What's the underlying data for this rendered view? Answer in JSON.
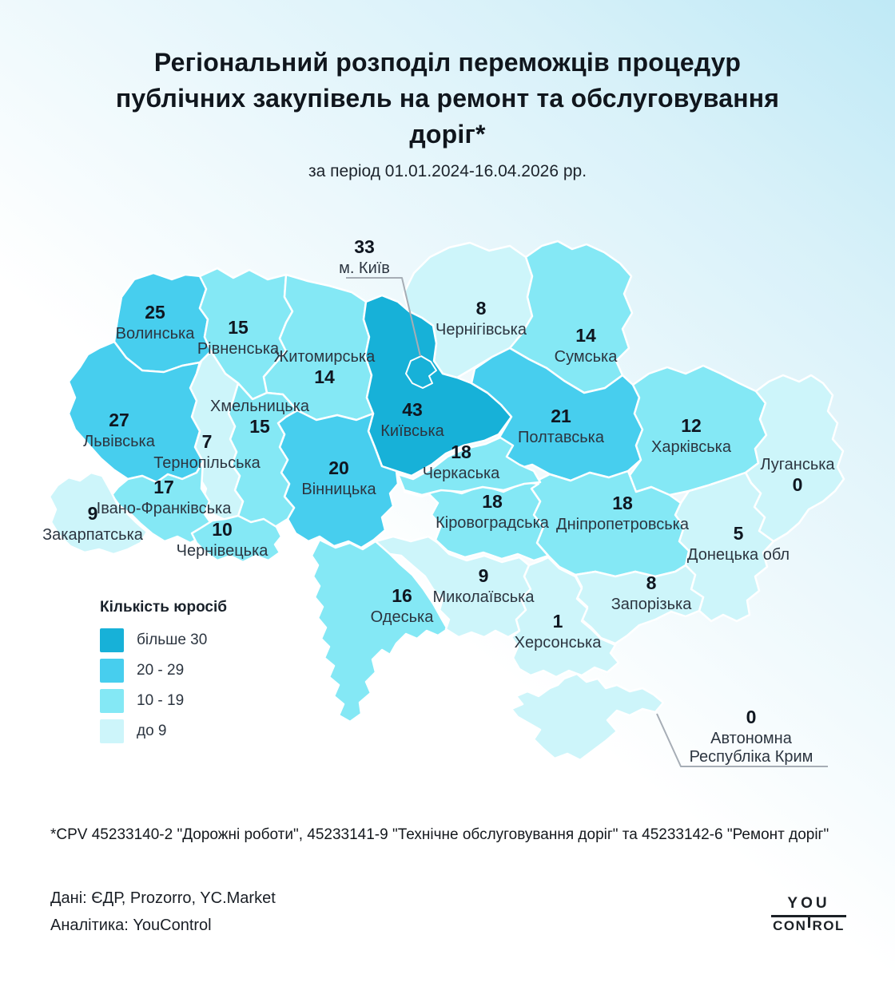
{
  "header": {
    "title_lines": [
      "Регіональний розподіл переможців процедур",
      "публічних закупівель на ремонт та обслуговування",
      "доріг*"
    ],
    "subtitle": "за період 01.01.2024-16.04.2026 рр."
  },
  "legend": {
    "title": "Кількість юросіб",
    "items": [
      {
        "label": "більше 30",
        "range_min": 30,
        "range_max": null,
        "color": "#17b1d8"
      },
      {
        "label": "20 - 29",
        "range_min": 20,
        "range_max": 29,
        "color": "#47ceee"
      },
      {
        "label": "10 - 19",
        "range_min": 10,
        "range_max": 19,
        "color": "#84e8f5"
      },
      {
        "label": "до 9",
        "range_min": 0,
        "range_max": 9,
        "color": "#cdf5fa"
      }
    ]
  },
  "chart_data": {
    "type": "choropleth",
    "unit": "кількість юросіб-переможців",
    "regions": [
      {
        "key": "kyiv_city",
        "name": "м. Київ",
        "value": 33
      },
      {
        "key": "volyn",
        "name": "Волинська",
        "value": 25
      },
      {
        "key": "rivne",
        "name": "Рівненська",
        "value": 15
      },
      {
        "key": "zhytomyr",
        "name": "Житомирська",
        "value": 14
      },
      {
        "key": "chernihiv",
        "name": "Чернігівська",
        "value": 8
      },
      {
        "key": "sumy",
        "name": "Сумська",
        "value": 14
      },
      {
        "key": "lviv",
        "name": "Львівська",
        "value": 27
      },
      {
        "key": "ternopil",
        "name": "Тернопільська",
        "value": 7
      },
      {
        "key": "khmelnytskyi",
        "name": "Хмельницька",
        "value": 15
      },
      {
        "key": "kyiv_obl",
        "name": "Київська",
        "value": 43
      },
      {
        "key": "cherkasy",
        "name": "Черкаська",
        "value": 18
      },
      {
        "key": "poltava",
        "name": "Полтавська",
        "value": 21
      },
      {
        "key": "kharkiv",
        "name": "Харківська",
        "value": 12
      },
      {
        "key": "luhansk",
        "name": "Луганська",
        "value": 0
      },
      {
        "key": "ivano_frankivsk",
        "name": "Івано-Франківська",
        "value": 17
      },
      {
        "key": "zakarpattia",
        "name": "Закарпатська",
        "value": 9
      },
      {
        "key": "chernivtsi",
        "name": "Чернівецька",
        "value": 10
      },
      {
        "key": "vinnytsia",
        "name": "Вінницька",
        "value": 20
      },
      {
        "key": "kirovohrad",
        "name": "Кіровоградська",
        "value": 18
      },
      {
        "key": "dnipro",
        "name": "Дніпропетровська",
        "value": 18
      },
      {
        "key": "donetsk",
        "name": "Донецька обл",
        "value": 5
      },
      {
        "key": "zaporizhzhia",
        "name": "Запорізька",
        "value": 8
      },
      {
        "key": "mykolaiv",
        "name": "Миколаївська",
        "value": 9
      },
      {
        "key": "odesa",
        "name": "Одеська",
        "value": 16
      },
      {
        "key": "kherson",
        "name": "Херсонська",
        "value": 1
      },
      {
        "key": "crimea",
        "name": "Автономна Республіка Крим",
        "value": 0
      }
    ]
  },
  "footnote": "*CPV 45233140-2 \"Дорожні роботи\", 45233141-9 \"Технічне обслуговування доріг\" та 45233142-6 \"Ремонт доріг\"",
  "sources": {
    "line1": "Дані: ЄДР, Prozorro, YC.Market",
    "line2": "Аналітика: YouControl"
  },
  "logo": {
    "top": "YOU",
    "bottom_left": "CON",
    "bottom_right": "ROL"
  }
}
